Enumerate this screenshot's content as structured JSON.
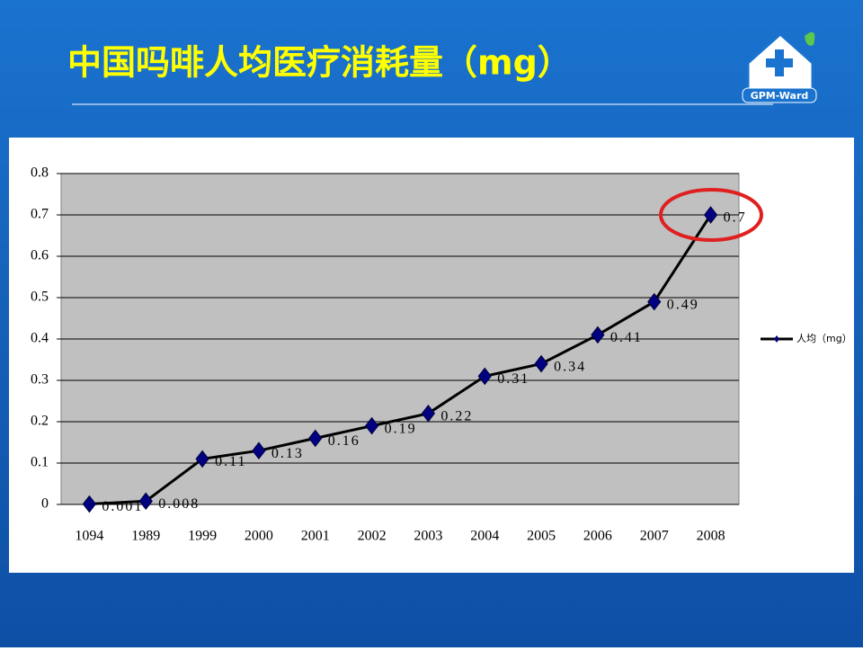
{
  "header": {
    "title": "中国吗啡人均医疗消耗量（mg）",
    "logo": "GPM-Ward"
  },
  "chart_data": {
    "type": "line",
    "categories": [
      "1094",
      "1989",
      "1999",
      "2000",
      "2001",
      "2002",
      "2003",
      "2004",
      "2005",
      "2006",
      "2007",
      "2008"
    ],
    "series": [
      {
        "name": "人均（mg）",
        "color": "#000000",
        "marker_color": "#000080",
        "values": [
          0.001,
          0.008,
          0.11,
          0.13,
          0.16,
          0.19,
          0.22,
          0.31,
          0.34,
          0.41,
          0.49,
          0.7
        ]
      }
    ],
    "ylim": [
      0,
      0.8
    ],
    "yticks": [
      0,
      0.1,
      0.2,
      0.3,
      0.4,
      0.5,
      0.6,
      0.7,
      0.8
    ],
    "grid": true,
    "legend": "right"
  }
}
